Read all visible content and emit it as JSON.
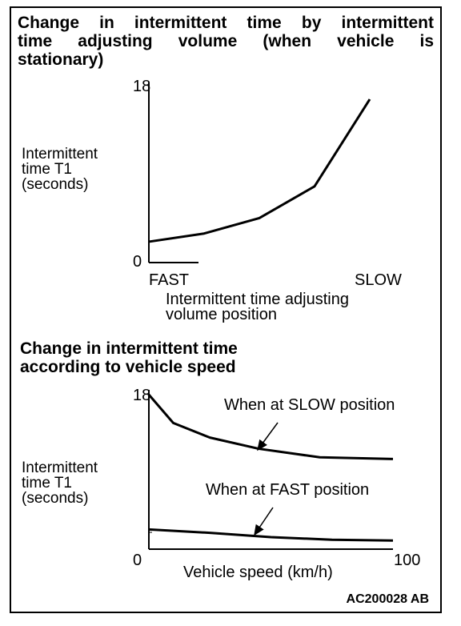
{
  "chart_data": [
    {
      "type": "line",
      "title_lines": [
        "Change in intermittent time by intermittent",
        "time adjusting volume (when vehicle is",
        "stationary)"
      ],
      "ylabel_lines": [
        "Intermittent",
        "time T1",
        "(seconds)"
      ],
      "xlabel_lines": [
        "Intermittent time adjusting",
        "volume position"
      ],
      "x_tick_labels": [
        "FAST",
        "SLOW"
      ],
      "y_tick_labels": [
        "0",
        "18"
      ],
      "ylim": [
        0,
        18
      ],
      "xlim": [
        0,
        1
      ],
      "series": [
        {
          "x": [
            0,
            0.25,
            0.5,
            0.75,
            1.0
          ],
          "values": [
            2.3,
            3.2,
            4.9,
            8.4,
            18.0
          ]
        }
      ]
    },
    {
      "type": "line",
      "title_lines": [
        "Change in intermittent time",
        "according to vehicle speed"
      ],
      "ylabel_lines": [
        "Intermittent",
        "time T1",
        "(seconds)"
      ],
      "xlabel": "Vehicle speed  (km/h)",
      "x_tick_labels": [
        "0",
        "100"
      ],
      "y_tick_labels": [
        "18"
      ],
      "ylim": [
        0,
        18
      ],
      "xlim": [
        0,
        100
      ],
      "annotations": [
        "When at SLOW position",
        "When at FAST position"
      ],
      "series": [
        {
          "name": "When at SLOW position",
          "x": [
            0,
            10,
            25,
            45,
            70,
            100
          ],
          "values": [
            18.0,
            14.7,
            13.0,
            11.7,
            10.7,
            10.5
          ]
        },
        {
          "name": "When at FAST position",
          "x": [
            0,
            25,
            50,
            75,
            100
          ],
          "values": [
            2.3,
            1.9,
            1.4,
            1.1,
            1.0
          ]
        }
      ]
    }
  ],
  "figure_code": "AC200028 AB"
}
